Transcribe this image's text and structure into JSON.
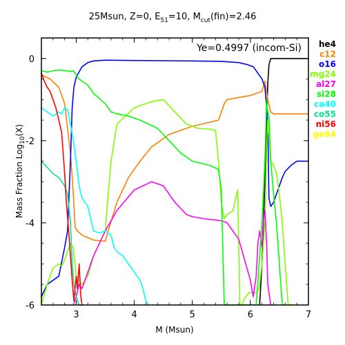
{
  "chart_data": {
    "type": "line",
    "title": {
      "main": "25Msun, Z=0, E",
      "sub1": "51",
      "mid": "=10, M",
      "sub2": "cut",
      "tail": "(fin)=2.46"
    },
    "xlabel": "M (Msun)",
    "ylabel": {
      "main": "Mass Fraction Log",
      "sub": "10",
      "tail": "(X)"
    },
    "annotation": "Ye=0.4997 (incom-Si)",
    "xlim": [
      2.4,
      7.0
    ],
    "ylim": [
      -6,
      0.5
    ],
    "xticks": [
      3,
      4,
      5,
      6,
      7
    ],
    "yticks": [
      0,
      -2,
      -4,
      -6
    ],
    "grid": false,
    "legend_position": "right-outside",
    "series": [
      {
        "name": "he4",
        "color": "#000000",
        "x": [
          6.16,
          6.2,
          6.25,
          6.28,
          6.3,
          6.32,
          6.35,
          6.4,
          7.0
        ],
        "y": [
          -6.0,
          -5.0,
          -3.0,
          -1.5,
          -0.6,
          -0.15,
          0.0,
          0.0,
          0.0
        ]
      },
      {
        "name": "c12",
        "color": "#ff8000",
        "x": [
          2.4,
          2.55,
          2.7,
          2.8,
          2.9,
          2.95,
          2.98,
          3.02,
          3.1,
          3.3,
          3.5,
          3.55,
          3.7,
          3.9,
          4.1,
          4.3,
          4.6,
          5.0,
          5.3,
          5.45,
          5.55,
          5.6,
          5.8,
          6.0,
          6.1,
          6.2,
          6.25,
          6.3,
          6.35,
          6.4,
          7.0
        ],
        "y": [
          -0.4,
          -0.5,
          -0.7,
          -1.1,
          -2.3,
          -3.3,
          -4.1,
          -4.2,
          -4.3,
          -4.42,
          -4.45,
          -4.2,
          -3.5,
          -2.9,
          -2.5,
          -2.15,
          -1.85,
          -1.65,
          -1.55,
          -1.5,
          -1.1,
          -1.0,
          -0.95,
          -0.9,
          -0.85,
          -0.8,
          -0.55,
          -1.0,
          -1.3,
          -1.35,
          -1.35
        ]
      },
      {
        "name": "o16",
        "color": "#0000ff",
        "x": [
          2.4,
          2.5,
          2.7,
          2.8,
          2.85,
          2.9,
          2.93,
          2.96,
          3.0,
          3.1,
          3.2,
          3.3,
          3.5,
          4.0,
          5.0,
          5.5,
          5.8,
          5.95,
          6.05,
          6.1,
          6.15,
          6.2,
          6.25,
          6.28,
          6.3,
          6.32,
          6.35,
          6.4,
          6.45,
          6.5,
          6.55,
          6.6,
          6.7,
          6.8,
          7.0
        ],
        "y": [
          -5.8,
          -5.5,
          -5.3,
          -4.6,
          -4.2,
          -2.5,
          -1.2,
          -0.7,
          -0.45,
          -0.2,
          -0.1,
          -0.06,
          -0.04,
          -0.05,
          -0.06,
          -0.07,
          -0.1,
          -0.15,
          -0.2,
          -0.3,
          -0.4,
          -0.5,
          -0.7,
          -1.2,
          -1.6,
          -3.4,
          -3.6,
          -3.5,
          -3.3,
          -3.1,
          -2.9,
          -2.75,
          -2.6,
          -2.5,
          -2.5
        ]
      },
      {
        "name": "mg24",
        "color": "#80ff00",
        "x": [
          2.4,
          2.5,
          2.6,
          2.7,
          2.75,
          2.8,
          2.9,
          2.95,
          3.0,
          3.1,
          3.2,
          3.3,
          3.4,
          3.5,
          3.55,
          3.6,
          3.7,
          4.0,
          4.3,
          4.5,
          4.7,
          4.9,
          5.1,
          5.3,
          5.4,
          5.45,
          5.5,
          5.55,
          5.6,
          5.7,
          5.78,
          5.82,
          5.85,
          5.88,
          5.92,
          5.98,
          6.1,
          6.15,
          6.2,
          6.25,
          6.28,
          6.3,
          6.35,
          6.4,
          6.45,
          6.5,
          6.55,
          6.6,
          6.65,
          6.7,
          6.75
        ],
        "y": [
          -6.0,
          -5.5,
          -5.1,
          -5.0,
          -5.05,
          -4.9,
          -4.5,
          -4.6,
          -5.3,
          -5.5,
          -5.3,
          -4.8,
          -4.5,
          -4.2,
          -3.3,
          -2.5,
          -1.6,
          -1.2,
          -1.05,
          -1.0,
          -1.3,
          -1.6,
          -1.7,
          -1.72,
          -1.75,
          -2.5,
          -3.5,
          -3.9,
          -3.8,
          -3.7,
          -3.2,
          -6.0,
          -6.0,
          -5.9,
          -5.8,
          -5.7,
          -5.7,
          -5.6,
          -5.0,
          -4.0,
          -2.3,
          -1.5,
          -2.5,
          -2.6,
          -2.8,
          -3.3,
          -4.0,
          -5.0,
          -6.0,
          -6.0,
          -6.0
        ]
      },
      {
        "name": "al27",
        "color": "#ff00ff",
        "x": [
          2.95,
          3.0,
          3.05,
          3.1,
          3.2,
          3.3,
          3.5,
          3.7,
          4.0,
          4.3,
          4.5,
          4.7,
          4.9,
          5.0,
          5.2,
          5.5,
          5.6,
          5.8,
          5.9,
          6.0,
          6.05,
          6.1,
          6.13,
          6.16,
          6.2,
          6.22,
          6.25,
          6.28,
          6.3,
          6.35
        ],
        "y": [
          -6.0,
          -5.8,
          -5.5,
          -5.6,
          -5.2,
          -4.8,
          -4.2,
          -3.7,
          -3.2,
          -3.0,
          -3.1,
          -3.5,
          -3.8,
          -3.85,
          -3.9,
          -3.95,
          -4.0,
          -4.4,
          -4.9,
          -5.4,
          -5.8,
          -5.3,
          -4.5,
          -4.2,
          -4.6,
          -4.0,
          -3.7,
          -4.5,
          -5.5,
          -6.0
        ]
      },
      {
        "name": "si28",
        "color": "#00ff00",
        "x": [
          2.4,
          2.5,
          2.6,
          2.7,
          2.8,
          2.85,
          2.9,
          2.95,
          3.0,
          3.05,
          3.1,
          3.2,
          3.3,
          3.5,
          3.6,
          3.7,
          3.9,
          4.1,
          4.4,
          4.6,
          4.8,
          5.0,
          5.3,
          5.45,
          5.5,
          5.55,
          5.6,
          5.65,
          5.7,
          5.75,
          5.8,
          5.85,
          5.9,
          6.0,
          6.1,
          6.2,
          6.25,
          6.28,
          6.3,
          6.32,
          6.35,
          6.4,
          6.45,
          6.5,
          6.55,
          6.6
        ],
        "y": [
          -0.3,
          -0.33,
          -0.3,
          -0.28,
          -0.3,
          -0.3,
          -0.32,
          -0.3,
          -0.4,
          -0.5,
          -0.55,
          -0.65,
          -0.85,
          -1.1,
          -1.3,
          -1.35,
          -1.4,
          -1.5,
          -1.7,
          -2.0,
          -2.3,
          -2.5,
          -2.6,
          -2.7,
          -3.2,
          -6.0,
          -6.0,
          -6.0,
          -6.0,
          -6.0,
          -6.0,
          -6.0,
          -6.0,
          -6.0,
          -6.0,
          -4.0,
          -2.5,
          -1.0,
          -1.3,
          -1.4,
          -2.5,
          -3.3,
          -4.0,
          -5.0,
          -6.0,
          -6.0
        ]
      },
      {
        "name": "ca40",
        "color": "#00ffff",
        "x": [
          2.4,
          2.5,
          2.6,
          2.7,
          2.75,
          2.8,
          2.85,
          2.9,
          2.95,
          3.0,
          3.05,
          3.1,
          3.2,
          3.3,
          3.4,
          3.5,
          3.6,
          3.65,
          3.7,
          3.8,
          3.9,
          4.0,
          4.1,
          4.15,
          4.2,
          4.25
        ],
        "y": [
          -1.2,
          -1.3,
          -1.4,
          -1.3,
          -1.35,
          -1.2,
          -1.25,
          -1.6,
          -2.0,
          -2.5,
          -3.1,
          -3.4,
          -3.6,
          -4.2,
          -4.25,
          -4.2,
          -4.3,
          -4.6,
          -4.7,
          -4.8,
          -5.0,
          -5.2,
          -5.4,
          -5.6,
          -5.9,
          -6.0
        ]
      },
      {
        "name": "co55",
        "color": "#00e090",
        "x": [
          2.4,
          2.5,
          2.6,
          2.7,
          2.8,
          2.85,
          2.9,
          2.93,
          2.96,
          3.0,
          3.05,
          3.1,
          3.12
        ],
        "y": [
          -2.5,
          -2.65,
          -2.8,
          -2.9,
          -3.1,
          -3.3,
          -4.0,
          -5.0,
          -5.5,
          -5.8,
          -6.0,
          -6.0,
          -6.0
        ]
      },
      {
        "name": "ni56",
        "color": "#ff0000",
        "x": [
          2.4,
          2.45,
          2.5,
          2.55,
          2.6,
          2.65,
          2.7,
          2.75,
          2.8,
          2.83,
          2.87,
          2.9,
          2.93,
          2.96,
          3.0,
          3.02,
          3.05,
          3.08,
          3.1,
          3.12
        ],
        "y": [
          -0.35,
          -0.55,
          -0.7,
          -0.8,
          -1.0,
          -1.2,
          -1.5,
          -1.8,
          -2.8,
          -3.5,
          -4.2,
          -4.8,
          -5.4,
          -5.9,
          -5.3,
          -5.6,
          -5.0,
          -5.8,
          -6.0,
          -6.0
        ]
      },
      {
        "name": "ge64",
        "color": "#ffff00",
        "x": [],
        "y": []
      }
    ]
  }
}
